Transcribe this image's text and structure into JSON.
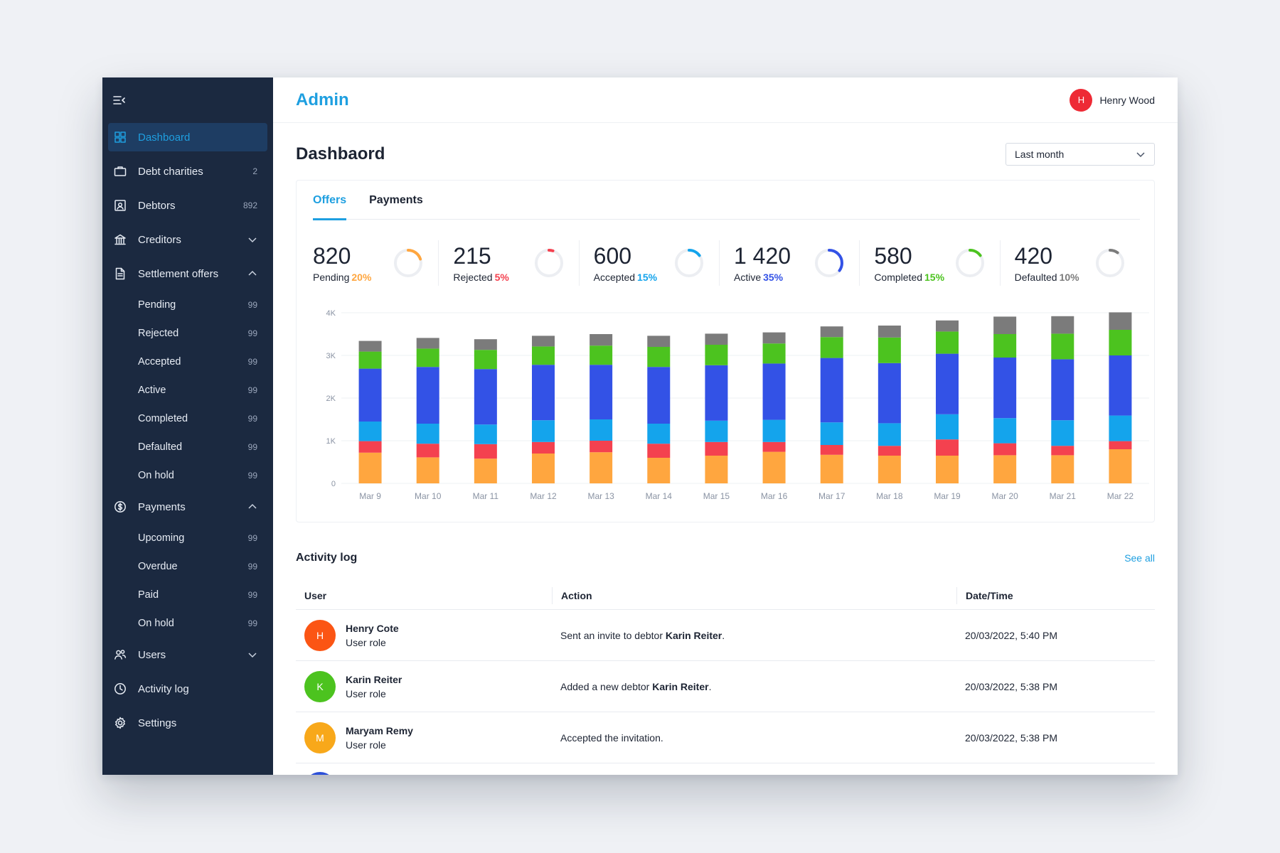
{
  "sidebar": {
    "items": [
      {
        "label": "Dashboard",
        "icon": "grid-icon",
        "active": true
      },
      {
        "label": "Debt charities",
        "icon": "briefcase-icon",
        "count": "2"
      },
      {
        "label": "Debtors",
        "icon": "contact-card-icon",
        "count": "892"
      },
      {
        "label": "Creditors",
        "icon": "bank-icon",
        "chevron": "down"
      },
      {
        "label": "Settlement offers",
        "icon": "document-icon",
        "chevron": "up",
        "children": [
          {
            "label": "Pending",
            "count": "99"
          },
          {
            "label": "Rejected",
            "count": "99"
          },
          {
            "label": "Accepted",
            "count": "99"
          },
          {
            "label": "Active",
            "count": "99"
          },
          {
            "label": "Completed",
            "count": "99"
          },
          {
            "label": "Defaulted",
            "count": "99"
          },
          {
            "label": "On hold",
            "count": "99"
          }
        ]
      },
      {
        "label": "Payments",
        "icon": "dollar-circle-icon",
        "chevron": "up",
        "children": [
          {
            "label": "Upcoming",
            "count": "99"
          },
          {
            "label": "Overdue",
            "count": "99"
          },
          {
            "label": "Paid",
            "count": "99"
          },
          {
            "label": "On hold",
            "count": "99"
          }
        ]
      },
      {
        "label": "Users",
        "icon": "users-icon",
        "chevron": "down"
      },
      {
        "label": "Activity log",
        "icon": "clock-icon"
      },
      {
        "label": "Settings",
        "icon": "gear-icon"
      }
    ]
  },
  "header": {
    "brand": "Admin",
    "user_initial": "H",
    "user_name": "Henry Wood"
  },
  "page": {
    "title": "Dashbaord",
    "period": "Last month"
  },
  "tabs": [
    {
      "label": "Offers",
      "active": true
    },
    {
      "label": "Payments",
      "active": false
    }
  ],
  "stats": [
    {
      "value": "820",
      "label": "Pending",
      "pct": "20%",
      "fraction": 0.2,
      "color": "#ffa63f"
    },
    {
      "value": "215",
      "label": "Rejected",
      "pct": "5%",
      "fraction": 0.05,
      "color": "#f4414f"
    },
    {
      "value": "600",
      "label": "Accepted",
      "pct": "15%",
      "fraction": 0.15,
      "color": "#14a4ec"
    },
    {
      "value": "1 420",
      "label": "Active",
      "pct": "35%",
      "fraction": 0.35,
      "color": "#3352e6"
    },
    {
      "value": "580",
      "label": "Completed",
      "pct": "15%",
      "fraction": 0.15,
      "color": "#4cc31f"
    },
    {
      "value": "420",
      "label": "Defaulted",
      "pct": "10%",
      "fraction": 0.1,
      "color": "#7b7b7b"
    }
  ],
  "chart_data": {
    "type": "bar",
    "stacked": true,
    "categories": [
      "Mar 9",
      "Mar 10",
      "Mar 11",
      "Mar 12",
      "Mar 13",
      "Mar 14",
      "Mar 15",
      "Mar 16",
      "Mar 17",
      "Mar 18",
      "Mar 19",
      "Mar 20",
      "Mar 21",
      "Mar 22"
    ],
    "y_ticks": [
      "0",
      "1K",
      "2K",
      "3K",
      "4K"
    ],
    "ylim": [
      0,
      4000
    ],
    "grid": true,
    "series": [
      {
        "color": "#ffa63f",
        "values": [
          720,
          610,
          580,
          700,
          730,
          600,
          650,
          740,
          670,
          650,
          650,
          660,
          660,
          800
        ]
      },
      {
        "color": "#f4414f",
        "values": [
          270,
          320,
          340,
          270,
          270,
          330,
          320,
          230,
          230,
          230,
          380,
          280,
          220,
          190
        ]
      },
      {
        "color": "#14a4ec",
        "values": [
          460,
          470,
          460,
          510,
          500,
          470,
          500,
          520,
          530,
          530,
          590,
          590,
          600,
          600
        ]
      },
      {
        "color": "#3352e6",
        "values": [
          1240,
          1330,
          1300,
          1300,
          1280,
          1330,
          1300,
          1320,
          1510,
          1410,
          1420,
          1420,
          1430,
          1410
        ]
      },
      {
        "color": "#4cc31f",
        "values": [
          400,
          430,
          450,
          430,
          450,
          470,
          480,
          470,
          490,
          600,
          520,
          550,
          600,
          600
        ]
      },
      {
        "color": "#7b7b7b",
        "values": [
          250,
          250,
          250,
          250,
          270,
          260,
          260,
          260,
          250,
          280,
          260,
          410,
          410,
          410
        ]
      }
    ]
  },
  "activity": {
    "title": "Activity log",
    "see_all": "See all",
    "headers": {
      "user": "User",
      "action": "Action",
      "date": "Date/Time"
    },
    "rows": [
      {
        "initial": "H",
        "avatar_color": "#fb5514",
        "name": "Henry Cote",
        "role": "User role",
        "action_prefix": "Sent an invite to debtor ",
        "action_bold": "Karin Reiter",
        "action_suffix": ".",
        "date": "20/03/2022, 5:40 PM"
      },
      {
        "initial": "K",
        "avatar_color": "#4cc31f",
        "name": "Karin Reiter",
        "role": "User role",
        "action_prefix": "Added a new debtor ",
        "action_bold": "Karin Reiter",
        "action_suffix": ".",
        "date": "20/03/2022, 5:38 PM"
      },
      {
        "initial": "M",
        "avatar_color": "#f8a81a",
        "name": "Maryam Remy",
        "role": "User role",
        "action_prefix": "Accepted the invitation.",
        "action_bold": "",
        "action_suffix": "",
        "date": "20/03/2022, 5:38 PM"
      }
    ]
  }
}
